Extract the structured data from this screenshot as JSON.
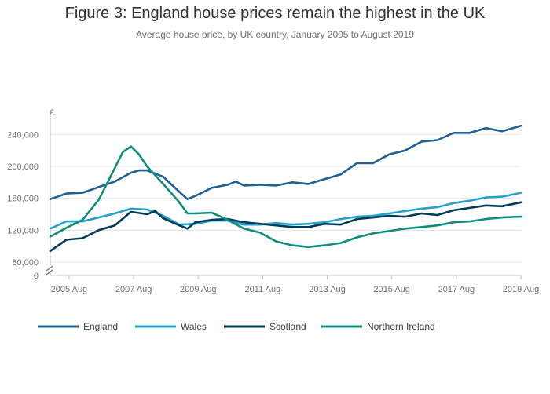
{
  "chart_data": {
    "type": "line",
    "title": "Figure 3: England house prices remain the highest in the UK",
    "subtitle": "Average house price, by UK country, January 2005 to August 2019",
    "y_unit": "£",
    "x_tick_labels": [
      "2005 Aug",
      "2007 Aug",
      "2009 Aug",
      "2011 Aug",
      "2013 Aug",
      "2015 Aug",
      "2017 Aug",
      "2019 Aug"
    ],
    "x_tick_years": [
      2005.583,
      2007.583,
      2009.583,
      2011.583,
      2013.583,
      2015.583,
      2017.583,
      2019.583
    ],
    "y_tick_values": [
      80000,
      120000,
      160000,
      200000,
      240000
    ],
    "y_tick_labels": [
      "80,000",
      "120,000",
      "160,000",
      "200,000",
      "240,000"
    ],
    "y_zero_label": "0",
    "xlim": [
      2005.0,
      2019.583
    ],
    "ylim": [
      80000,
      260000
    ],
    "axis_break": true,
    "grid": true,
    "legend_position": "bottom",
    "series": [
      {
        "name": "England",
        "color": "#206095",
        "points": [
          [
            2005.0,
            159000
          ],
          [
            2005.5,
            166000
          ],
          [
            2006.0,
            167000
          ],
          [
            2006.5,
            174000
          ],
          [
            2007.0,
            181000
          ],
          [
            2007.5,
            192000
          ],
          [
            2007.75,
            195000
          ],
          [
            2008.0,
            195000
          ],
          [
            2008.5,
            187000
          ],
          [
            2009.0,
            168000
          ],
          [
            2009.25,
            159000
          ],
          [
            2009.5,
            163000
          ],
          [
            2010.0,
            173000
          ],
          [
            2010.5,
            177000
          ],
          [
            2010.75,
            181000
          ],
          [
            2011.0,
            176000
          ],
          [
            2011.5,
            177000
          ],
          [
            2012.0,
            176000
          ],
          [
            2012.5,
            180000
          ],
          [
            2013.0,
            178000
          ],
          [
            2013.5,
            184000
          ],
          [
            2014.0,
            190000
          ],
          [
            2014.5,
            204000
          ],
          [
            2015.0,
            204000
          ],
          [
            2015.5,
            215000
          ],
          [
            2016.0,
            220000
          ],
          [
            2016.5,
            231000
          ],
          [
            2017.0,
            233000
          ],
          [
            2017.5,
            242000
          ],
          [
            2018.0,
            242000
          ],
          [
            2018.5,
            248000
          ],
          [
            2019.0,
            244000
          ],
          [
            2019.583,
            251000
          ]
        ]
      },
      {
        "name": "Wales",
        "color": "#27a0cc",
        "points": [
          [
            2005.0,
            122000
          ],
          [
            2005.5,
            131000
          ],
          [
            2006.0,
            131000
          ],
          [
            2006.5,
            136000
          ],
          [
            2007.0,
            141000
          ],
          [
            2007.5,
            147000
          ],
          [
            2008.0,
            146000
          ],
          [
            2008.5,
            138000
          ],
          [
            2009.0,
            127000
          ],
          [
            2009.5,
            128000
          ],
          [
            2010.0,
            132000
          ],
          [
            2010.5,
            132000
          ],
          [
            2011.0,
            127000
          ],
          [
            2011.5,
            127000
          ],
          [
            2012.0,
            129000
          ],
          [
            2012.5,
            127000
          ],
          [
            2013.0,
            128000
          ],
          [
            2013.5,
            130000
          ],
          [
            2014.0,
            134000
          ],
          [
            2014.5,
            137000
          ],
          [
            2015.0,
            138000
          ],
          [
            2015.5,
            141000
          ],
          [
            2016.0,
            144000
          ],
          [
            2016.5,
            147000
          ],
          [
            2017.0,
            149000
          ],
          [
            2017.5,
            154000
          ],
          [
            2018.0,
            157000
          ],
          [
            2018.5,
            161000
          ],
          [
            2019.0,
            162000
          ],
          [
            2019.583,
            167000
          ]
        ]
      },
      {
        "name": "Scotland",
        "color": "#003c57",
        "points": [
          [
            2005.0,
            94000
          ],
          [
            2005.5,
            108000
          ],
          [
            2006.0,
            110000
          ],
          [
            2006.5,
            120000
          ],
          [
            2007.0,
            126000
          ],
          [
            2007.5,
            143000
          ],
          [
            2008.0,
            140000
          ],
          [
            2008.25,
            144000
          ],
          [
            2008.5,
            135000
          ],
          [
            2009.0,
            126000
          ],
          [
            2009.25,
            122000
          ],
          [
            2009.5,
            130000
          ],
          [
            2010.0,
            133000
          ],
          [
            2010.5,
            134000
          ],
          [
            2011.0,
            130000
          ],
          [
            2011.5,
            128000
          ],
          [
            2012.0,
            126000
          ],
          [
            2012.5,
            124000
          ],
          [
            2013.0,
            124000
          ],
          [
            2013.5,
            128000
          ],
          [
            2014.0,
            127000
          ],
          [
            2014.5,
            134000
          ],
          [
            2015.0,
            136000
          ],
          [
            2015.5,
            138000
          ],
          [
            2016.0,
            137000
          ],
          [
            2016.5,
            141000
          ],
          [
            2017.0,
            139000
          ],
          [
            2017.5,
            145000
          ],
          [
            2018.0,
            148000
          ],
          [
            2018.5,
            151000
          ],
          [
            2019.0,
            150000
          ],
          [
            2019.583,
            155000
          ]
        ]
      },
      {
        "name": "Northern Ireland",
        "color": "#118c7b",
        "points": [
          [
            2005.0,
            112000
          ],
          [
            2005.5,
            123000
          ],
          [
            2006.0,
            133000
          ],
          [
            2006.5,
            158000
          ],
          [
            2007.0,
            198000
          ],
          [
            2007.25,
            218000
          ],
          [
            2007.5,
            225000
          ],
          [
            2007.75,
            215000
          ],
          [
            2008.0,
            200000
          ],
          [
            2008.5,
            178000
          ],
          [
            2009.0,
            155000
          ],
          [
            2009.25,
            141000
          ],
          [
            2009.5,
            141000
          ],
          [
            2010.0,
            142000
          ],
          [
            2010.5,
            133000
          ],
          [
            2011.0,
            122000
          ],
          [
            2011.5,
            117000
          ],
          [
            2012.0,
            106000
          ],
          [
            2012.5,
            101000
          ],
          [
            2013.0,
            99000
          ],
          [
            2013.5,
            101000
          ],
          [
            2014.0,
            104000
          ],
          [
            2014.5,
            111000
          ],
          [
            2015.0,
            116000
          ],
          [
            2015.5,
            119000
          ],
          [
            2016.0,
            122000
          ],
          [
            2016.5,
            124000
          ],
          [
            2017.0,
            126000
          ],
          [
            2017.5,
            130000
          ],
          [
            2018.0,
            131000
          ],
          [
            2018.5,
            134000
          ],
          [
            2019.0,
            136000
          ],
          [
            2019.583,
            137000
          ]
        ]
      }
    ]
  }
}
